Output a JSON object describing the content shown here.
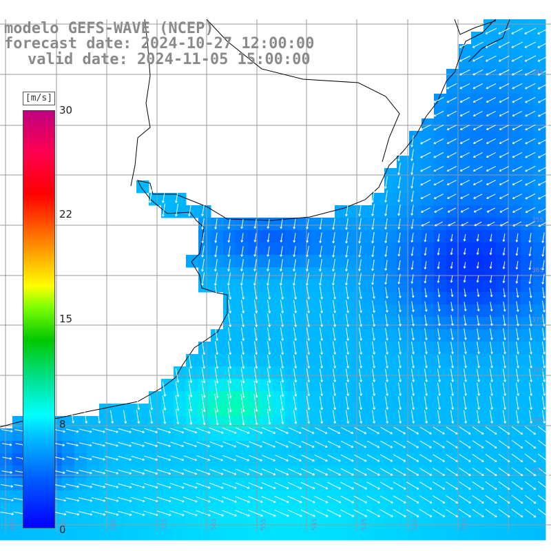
{
  "titles": {
    "model": "modelo GEFS-WAVE (NCEP)",
    "forecast": "forecast date: 2024-10-27 12:00:00",
    "valid": "valid date: 2024-11-05 15:00:00"
  },
  "colorbar": {
    "unit": "[m/s]",
    "ticks": [
      "30",
      "22",
      "15",
      "8",
      "0"
    ],
    "tick_values": [
      30,
      22,
      15,
      8,
      0
    ],
    "range": [
      0,
      30
    ]
  },
  "lat_labels": [
    "34S",
    "35S",
    "36S",
    "37S",
    "38S",
    "39S",
    "40S"
  ],
  "lon_labels": [
    "60S",
    "59S",
    "58S",
    "57S",
    "56S",
    "55S",
    "54S",
    "53S",
    "52S",
    "51S"
  ],
  "colors": {
    "land": "#ffffff",
    "grid": "#9a9a9a",
    "coast": "#000000",
    "arrows": "#ffffff",
    "title": "#8a8a8a"
  },
  "chart_data": {
    "type": "heatmap",
    "field": "wind speed with direction arrows",
    "units": "m/s",
    "value_range": [
      0,
      30
    ],
    "speed_regions": [
      {
        "region": "offshore north-east",
        "speed_ms": 2
      },
      {
        "region": "Rio de la Plata estuary",
        "speed_ms": 3
      },
      {
        "region": "central shelf",
        "speed_ms": 6
      },
      {
        "region": "near 38S coast",
        "speed_ms": 10
      },
      {
        "region": "south",
        "speed_ms": 8
      }
    ]
  }
}
